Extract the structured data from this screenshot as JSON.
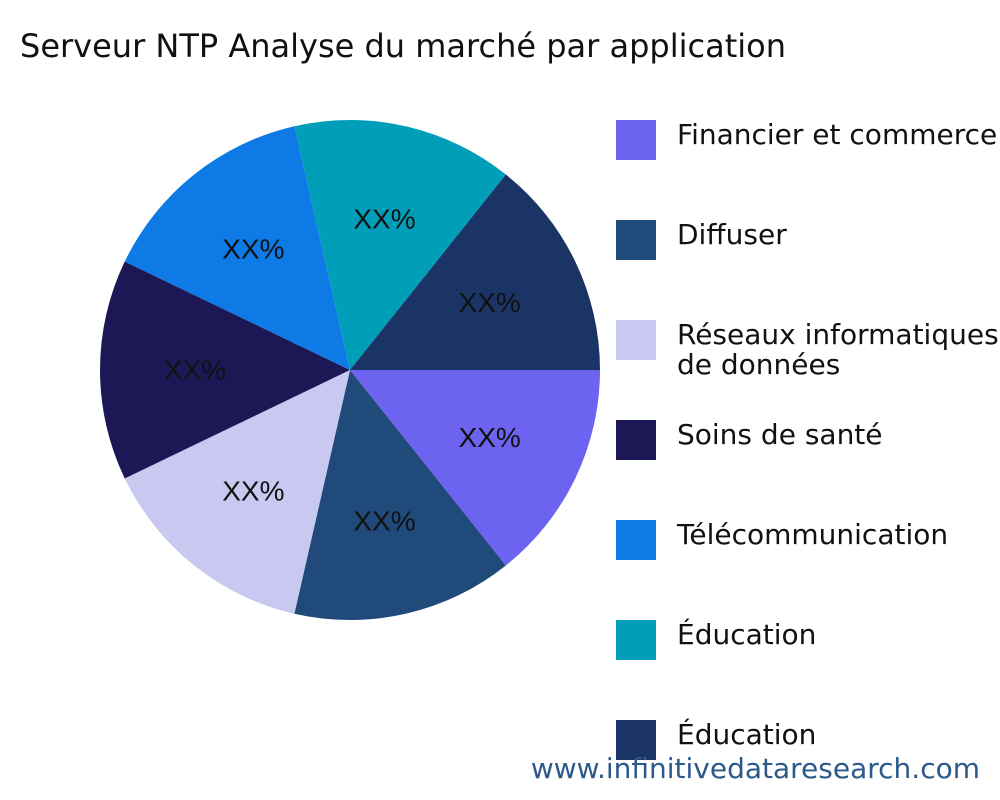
{
  "title": "Serveur NTP Analyse du marché par application",
  "watermark": "www.infinitivedataresearch.com",
  "chart_data": {
    "type": "pie",
    "title": "Serveur NTP Analyse du marché par application",
    "legend_position": "right",
    "slices": [
      {
        "label": "Financier et commerce",
        "value": 14.2857,
        "display": "XX%",
        "color": "#6c63f0"
      },
      {
        "label": "Diffuser",
        "value": 14.2857,
        "display": "XX%",
        "color": "#1f4a7a"
      },
      {
        "label": "Réseaux informatiques et de données",
        "value": 14.2857,
        "display": "XX%",
        "color": "#c8c8f0"
      },
      {
        "label": "Soins de santé",
        "value": 14.2857,
        "display": "XX%",
        "color": "#1c1855"
      },
      {
        "label": "Télécommunication",
        "value": 14.2857,
        "display": "XX%",
        "color": "#0e7ae6"
      },
      {
        "label": "Éducation",
        "value": 14.2857,
        "display": "XX%",
        "color": "#009eb8"
      },
      {
        "label": "Éducation",
        "value": 14.2857,
        "display": "XX%",
        "color": "#1b3466"
      }
    ]
  }
}
